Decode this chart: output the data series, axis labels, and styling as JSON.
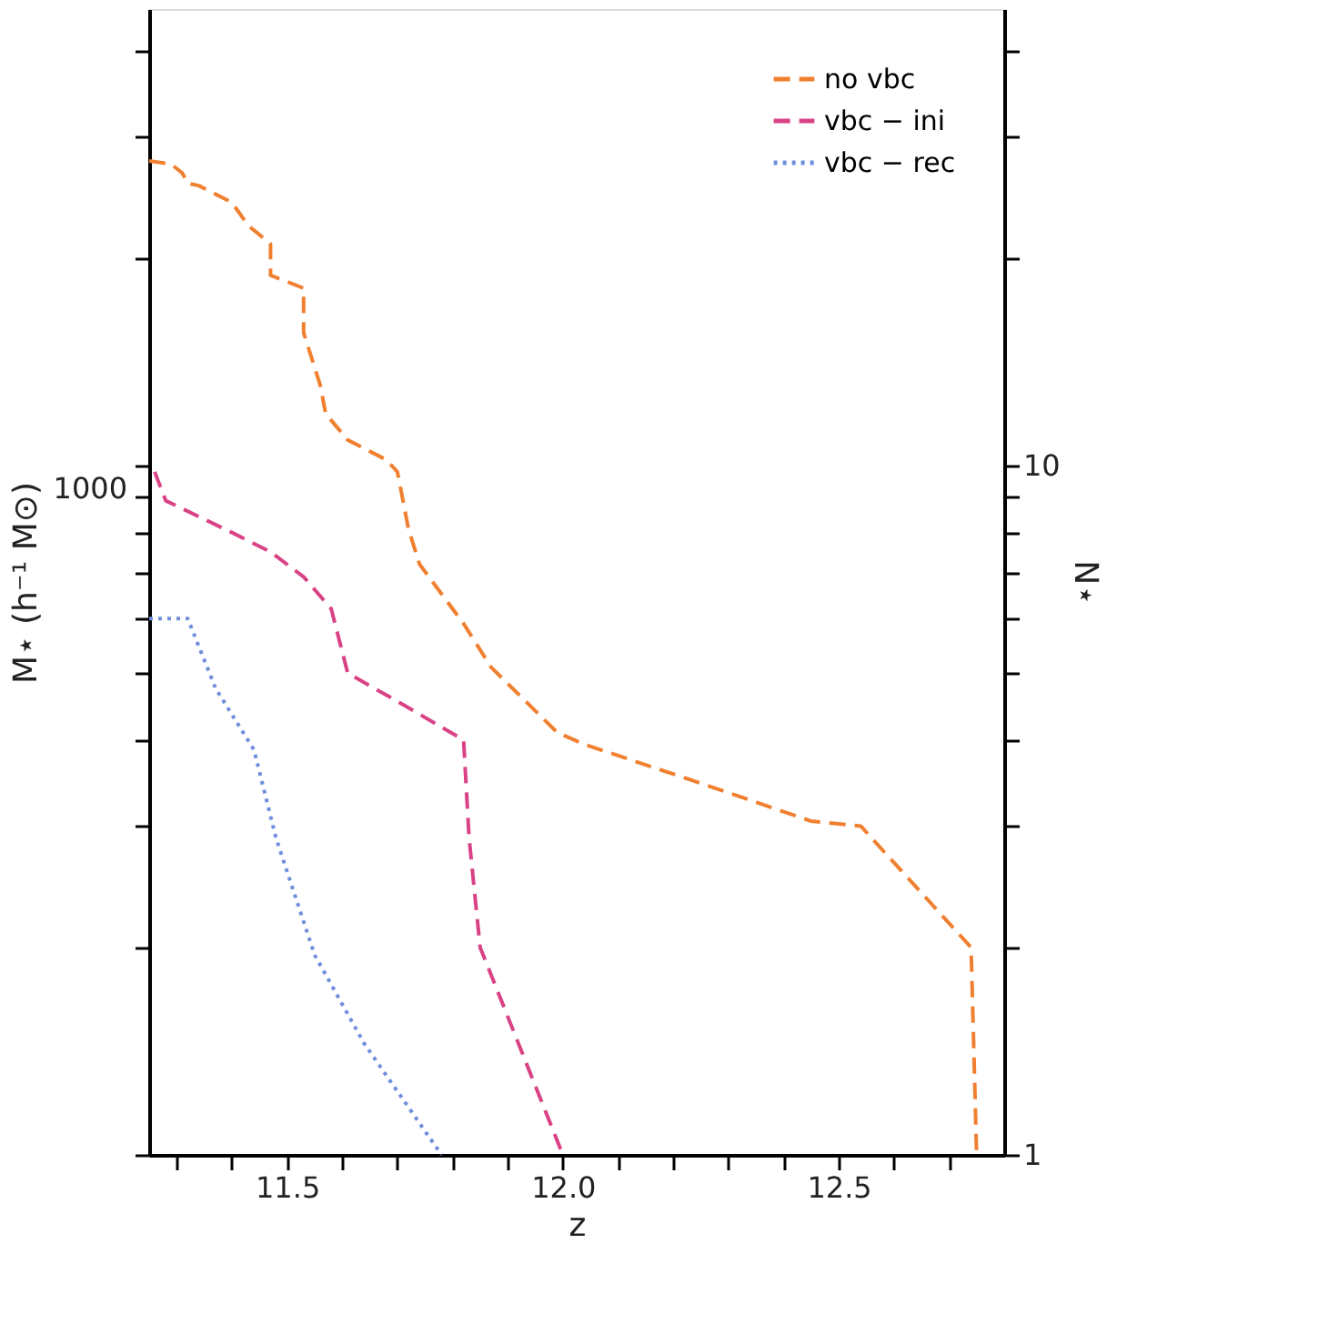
{
  "chart_data": {
    "type": "line",
    "xlabel": "z",
    "ylabel": "M⋆ (h⁻¹ M⊙)",
    "y2label": "N⋆",
    "annotations": [
      "1000"
    ],
    "xlim": [
      11.25,
      12.8
    ],
    "xticks": [
      {
        "value": 11.3,
        "label": null
      },
      {
        "value": 11.4,
        "label": null
      },
      {
        "value": 11.5,
        "label": "11.5"
      },
      {
        "value": 11.6,
        "label": null
      },
      {
        "value": 11.7,
        "label": null
      },
      {
        "value": 11.8,
        "label": null
      },
      {
        "value": 11.9,
        "label": null
      },
      {
        "value": 12.0,
        "label": "12.0"
      },
      {
        "value": 12.1,
        "label": null
      },
      {
        "value": 12.2,
        "label": null
      },
      {
        "value": 12.3,
        "label": null
      },
      {
        "value": 12.4,
        "label": null
      },
      {
        "value": 12.5,
        "label": "12.5"
      },
      {
        "value": 12.6,
        "label": null
      },
      {
        "value": 12.7,
        "label": null
      }
    ],
    "y2lim": [
      1,
      46
    ],
    "y2ticks": [
      1,
      {
        "value": 2,
        "label": null
      },
      {
        "value": 3,
        "label": null
      },
      {
        "value": 4,
        "label": null
      },
      {
        "value": 5,
        "label": null
      },
      {
        "value": 6,
        "label": null
      },
      {
        "value": 7,
        "label": null
      },
      {
        "value": 8,
        "label": null
      },
      {
        "value": 9,
        "label": null
      },
      10,
      {
        "value": 20,
        "label": null
      },
      {
        "value": 30,
        "label": null
      },
      {
        "value": 40,
        "label": null
      }
    ],
    "log": "y2",
    "legend": "top right",
    "grid": false,
    "series": [
      {
        "name": "no vbc",
        "color": "#f08030",
        "line_style": "dashed",
        "axis": "y2",
        "x": [
          11.25,
          11.29,
          11.31,
          11.32,
          11.34,
          11.4,
          11.43,
          11.47,
          11.47,
          11.53,
          11.53,
          11.56,
          11.57,
          11.61,
          11.68,
          11.7,
          11.72,
          11.74,
          11.82,
          11.87,
          11.99,
          12.04,
          12.26,
          12.45,
          12.54,
          12.74,
          12.75
        ],
        "values": [
          27.7,
          27.4,
          26.6,
          25.7,
          25.5,
          24.1,
          22.3,
          21.0,
          18.9,
          18.1,
          15.6,
          13.1,
          11.9,
          10.9,
          10.2,
          9.8,
          8.1,
          7.2,
          5.9,
          5.1,
          4.1,
          3.94,
          3.44,
          3.05,
          3.0,
          2.0,
          1.0
        ]
      },
      {
        "name": "vbc − ini",
        "color": "#d94386",
        "line_style": "dashed",
        "axis": "y2",
        "x": [
          11.26,
          11.28,
          11.4,
          11.47,
          11.53,
          11.58,
          11.61,
          11.69,
          11.82,
          11.83,
          11.85,
          12.0
        ],
        "values": [
          9.8,
          8.9,
          8.0,
          7.5,
          6.9,
          6.2,
          5.0,
          4.6,
          4.0,
          2.88,
          2.0,
          1.0
        ]
      },
      {
        "name": "vbc − rec",
        "color": "#6f8fdc",
        "line_style": "dotted",
        "axis": "y2",
        "x": [
          11.25,
          11.32,
          11.37,
          11.44,
          11.48,
          11.55,
          11.64,
          11.78
        ],
        "values": [
          6.0,
          6.0,
          4.76,
          3.87,
          2.88,
          1.95,
          1.45,
          1.0
        ]
      }
    ]
  }
}
